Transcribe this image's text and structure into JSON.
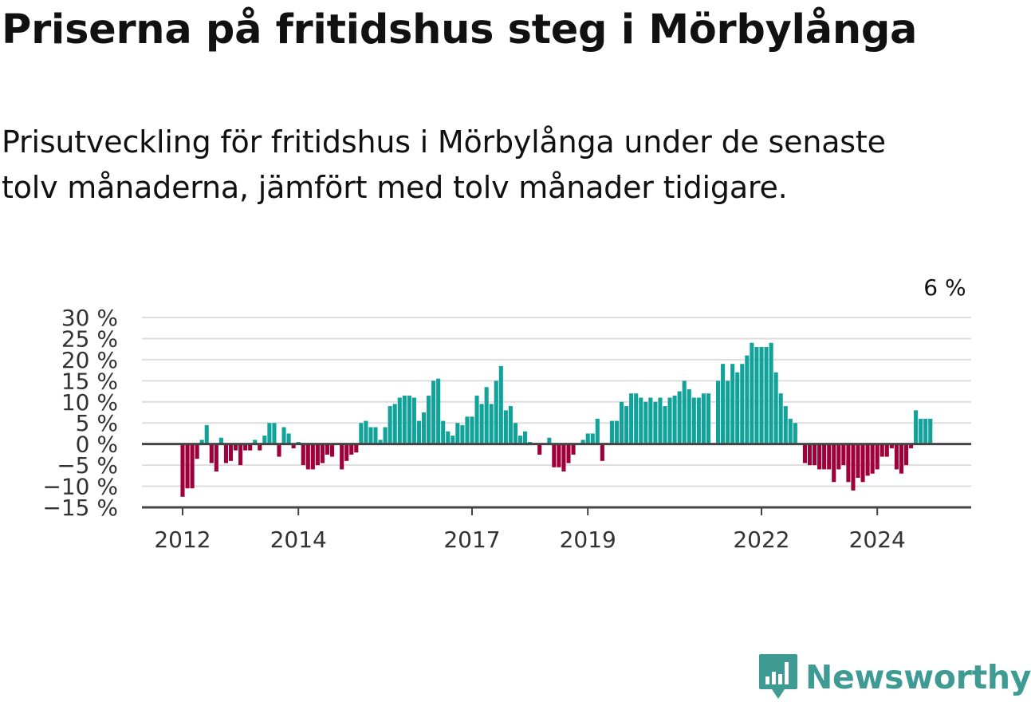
{
  "title": "Priserna på fritidshus steg i Mörbylånga",
  "subtitle": "Prisutveckling för fritidshus i Mörbylånga under de senaste tolv månaderna, jämfört med tolv månader tidigare.",
  "brand": "Newsworthy",
  "colors": {
    "positive": "#11a39a",
    "negative": "#a0003a",
    "brand": "#3e9b94",
    "grid": "#dddddd",
    "axis": "#444444"
  },
  "chart_data": {
    "type": "bar",
    "x_start": "2012-01",
    "frequency": "monthly",
    "ylim": [
      -15,
      30
    ],
    "y_ticks": [
      -15,
      -10,
      -5,
      0,
      5,
      10,
      15,
      20,
      25,
      30
    ],
    "y_tick_labels": [
      "−15 %",
      "−10 %",
      "−5 %",
      "0 %",
      "5 %",
      "10 %",
      "15 %",
      "20 %",
      "25 %",
      "30 %"
    ],
    "x_tick_labels": [
      "2012",
      "2014",
      "2017",
      "2019",
      "2022",
      "2024"
    ],
    "x_ticks": [
      "2012-01",
      "2014-01",
      "2017-01",
      "2019-01",
      "2022-01",
      "2024-01"
    ],
    "grid": "horizontal",
    "annotation": {
      "text": "6 %",
      "at": "2025-03"
    },
    "values": [
      -12.5,
      -10.5,
      -10.5,
      -3.5,
      1,
      4.5,
      -4.5,
      -6.5,
      1.5,
      -4.5,
      -4,
      -1.5,
      -5,
      -1.5,
      -1.5,
      1,
      -1.5,
      2,
      5,
      5,
      -3,
      4,
      2.5,
      -1,
      0.5,
      -5,
      -6,
      -6,
      -5,
      -4.5,
      -2.5,
      -3,
      0,
      -6,
      -4,
      -2.5,
      -2,
      5,
      5.5,
      4,
      4,
      1,
      4,
      9,
      9.5,
      11,
      11.5,
      11.5,
      11,
      5.5,
      7.5,
      11.5,
      15,
      15.5,
      5.5,
      3,
      2,
      5,
      4.5,
      6.5,
      6.5,
      11.5,
      9.5,
      13.5,
      9.5,
      15,
      18.5,
      8,
      9,
      5,
      2,
      3,
      0.5,
      0,
      -2.5,
      0,
      1.5,
      -5.5,
      -5.5,
      -6.5,
      -4.5,
      -2.5,
      0,
      1,
      2.5,
      2.5,
      6,
      -4,
      0,
      5.5,
      5.5,
      10,
      9,
      12,
      12,
      11,
      10,
      11,
      10,
      11,
      9,
      11,
      11.5,
      12.5,
      15,
      13,
      11,
      11,
      12,
      12,
      0,
      15,
      19,
      15,
      19,
      17,
      19,
      21,
      24,
      23,
      23,
      23,
      24,
      17,
      12,
      9,
      6,
      5,
      0,
      -4.5,
      -5,
      -5,
      -6,
      -6,
      -6,
      -9,
      -6,
      -5,
      -9,
      -11,
      -8,
      -9,
      -7.5,
      -7,
      -6,
      -3,
      -3,
      -1,
      -6,
      -7,
      -5,
      -1,
      8,
      6,
      6,
      6
    ]
  }
}
